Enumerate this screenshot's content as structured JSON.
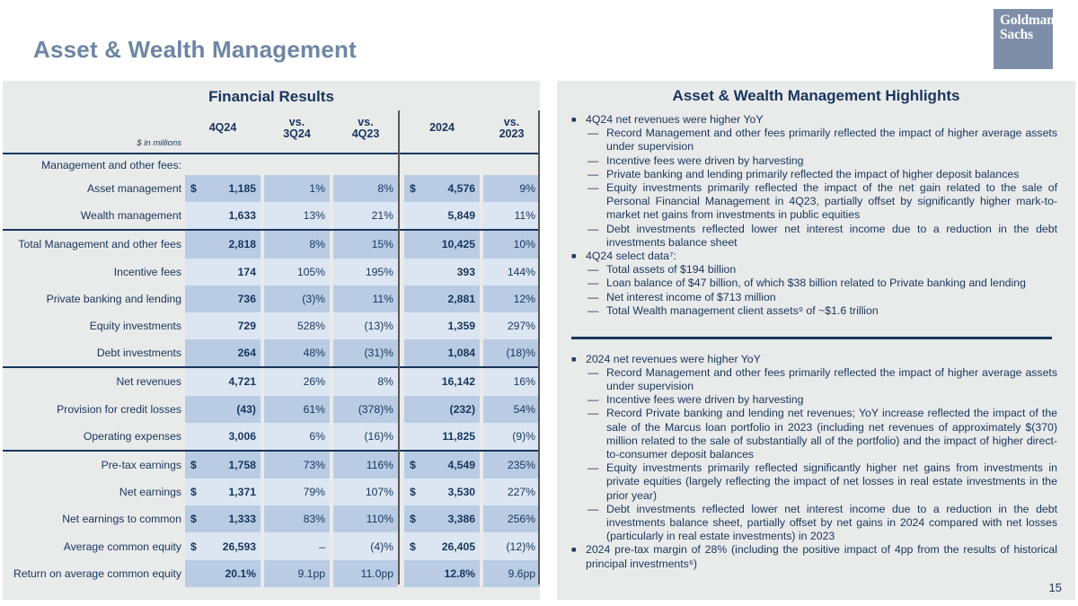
{
  "slide": {
    "title": "Asset & Wealth Management",
    "page_number": "15"
  },
  "logo": {
    "line1": "Goldman",
    "line2": "Sachs"
  },
  "colors": {
    "navy_text": "#17365d",
    "title_blue_gray": "#6d86a3",
    "logo_bg": "#7e8ea8",
    "panel_bg": "#e9eaea",
    "cell_dark_blue": "#b9cce4",
    "cell_light_blue": "#dce6f2",
    "divider_gray": "#595959"
  },
  "financial_results": {
    "title": "Financial Results",
    "unit_label": "$ in millions",
    "col_headers": {
      "c1": "4Q24",
      "c2a": "vs.",
      "c2b": "3Q24",
      "c3a": "vs.",
      "c3b": "4Q23",
      "c4": "2024",
      "c5a": "vs.",
      "c5b": "2023"
    },
    "rows": [
      {
        "label": "Management and other fees:"
      },
      {
        "label": "Asset management",
        "dollar": "$",
        "v1": "1,185",
        "v2": "1%",
        "v3": "8%",
        "dollar2": "$",
        "v4": "4,576",
        "v5": "9%"
      },
      {
        "label": "Wealth management",
        "v1": "1,633",
        "v2": "13%",
        "v3": "21%",
        "v4": "5,849",
        "v5": "11%"
      },
      {
        "label": "Total Management and other fees",
        "v1": "2,818",
        "v2": "8%",
        "v3": "15%",
        "v4": "10,425",
        "v5": "10%"
      },
      {
        "label": "Incentive fees",
        "v1": "174",
        "v2": "105%",
        "v3": "195%",
        "v4": "393",
        "v5": "144%"
      },
      {
        "label": "Private banking and lending",
        "v1": "736",
        "v2": "(3)%",
        "v3": "11%",
        "v4": "2,881",
        "v5": "12%"
      },
      {
        "label": "Equity investments",
        "v1": "729",
        "v2": "528%",
        "v3": "(13)%",
        "v4": "1,359",
        "v5": "297%"
      },
      {
        "label": "Debt investments",
        "v1": "264",
        "v2": "48%",
        "v3": "(31)%",
        "v4": "1,084",
        "v5": "(18)%"
      },
      {
        "label": "Net revenues",
        "v1": "4,721",
        "v2": "26%",
        "v3": "8%",
        "v4": "16,142",
        "v5": "16%"
      },
      {
        "label": "Provision for credit losses",
        "v1": "(43)",
        "v2": "61%",
        "v3": "(378)%",
        "v4": "(232)",
        "v5": "54%"
      },
      {
        "label": "Operating expenses",
        "v1": "3,006",
        "v2": "6%",
        "v3": "(16)%",
        "v4": "11,825",
        "v5": "(9)%"
      },
      {
        "label": "Pre-tax earnings",
        "dollar": "$",
        "v1": "1,758",
        "v2": "73%",
        "v3": "116%",
        "dollar2": "$",
        "v4": "4,549",
        "v5": "235%"
      },
      {
        "label": "Net earnings",
        "dollar": "$",
        "v1": "1,371",
        "v2": "79%",
        "v3": "107%",
        "dollar2": "$",
        "v4": "3,530",
        "v5": "227%"
      },
      {
        "label": "Net earnings to common",
        "dollar": "$",
        "v1": "1,333",
        "v2": "83%",
        "v3": "110%",
        "dollar2": "$",
        "v4": "3,386",
        "v5": "256%"
      },
      {
        "label": "Average common equity",
        "dollar": "$",
        "v1": "26,593",
        "v2": "–",
        "v3": "(4)%",
        "dollar2": "$",
        "v4": "26,405",
        "v5": "(12)%"
      },
      {
        "label": "Return on average common equity",
        "v1": "20.1%",
        "v2": "9.1pp",
        "v3": "11.0pp",
        "v4": "12.8%",
        "v5": "9.6pp"
      }
    ]
  },
  "highlights": {
    "title": "Asset & Wealth Management Highlights",
    "bullet_square": "■",
    "bullet_dash": "—",
    "sections": [
      {
        "bullets": [
          {
            "text": "4Q24 net revenues were higher YoY",
            "subs": [
              "Record Management and other fees primarily reflected the impact of higher average assets under supervision",
              "Incentive fees were driven by harvesting",
              "Private banking and lending primarily reflected the impact of higher deposit balances",
              "Equity investments primarily reflected the impact of the net gain related to the sale of Personal Financial Management in 4Q23, partially offset by significantly higher mark-to-market net gains from investments in public equities",
              "Debt investments reflected lower net interest income due to a reduction in the debt investments balance sheet"
            ]
          },
          {
            "text": "4Q24 select data⁷:",
            "subs": [
              "Total assets of $194 billion",
              "Loan balance of $47 billion, of which $38 billion related to Private banking and lending",
              "Net interest income of $713 million",
              "Total Wealth management client assets⁹ of ~$1.6 trillion"
            ]
          }
        ]
      },
      {
        "bullets": [
          {
            "text": "2024 net revenues were higher YoY",
            "subs": [
              "Record Management and other fees primarily reflected the impact of higher average assets under supervision",
              "Incentive fees were driven by harvesting",
              "Record Private banking and lending net revenues; YoY increase reflected the impact of the sale of the Marcus loan portfolio in 2023 (including net revenues of approximately $(370) million related to the sale of substantially all of the portfolio) and the impact of higher direct-to-consumer deposit balances",
              "Equity investments primarily reflected significantly higher net gains from investments in private equities (largely reflecting the impact of net losses in real estate investments in the prior year)",
              "Debt investments reflected lower net interest income due to a reduction in the debt investments balance sheet, partially offset by net gains in 2024 compared with net losses (particularly in real estate investments) in 2023"
            ]
          },
          {
            "text": "2024 pre-tax margin of 28% (including the positive impact of 4pp from the results of historical principal investments⁶)",
            "subs": []
          }
        ]
      }
    ]
  }
}
